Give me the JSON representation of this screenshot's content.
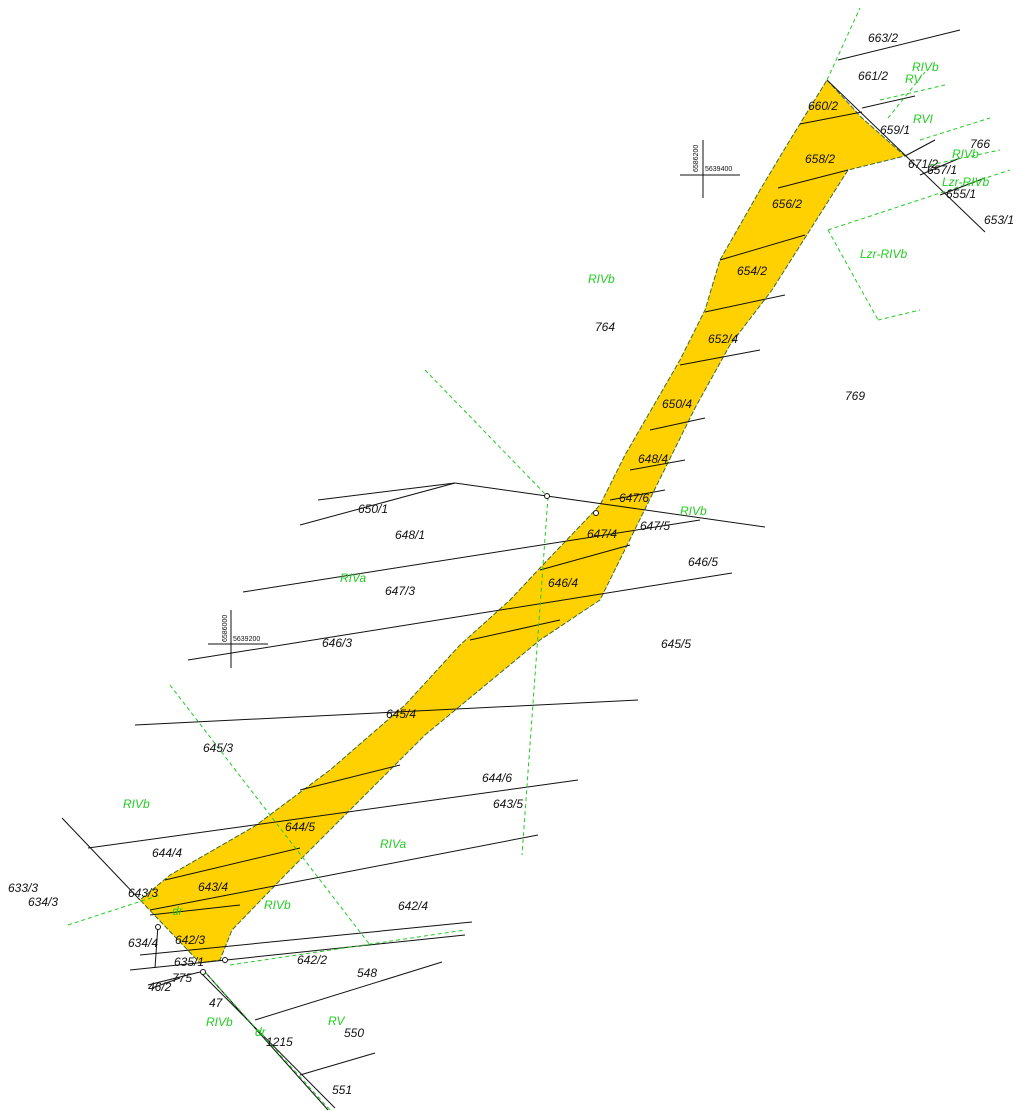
{
  "map": {
    "parcel_labels": [
      "663/2",
      "661/2",
      "660/2",
      "659/1",
      "658/2",
      "766",
      "671/2",
      "657/1",
      "655/1",
      "653/1",
      "656/2",
      "654/2",
      "764",
      "652/4",
      "769",
      "650/4",
      "648/4",
      "647/6",
      "650/1",
      "648/1",
      "647/4",
      "647/5",
      "646/5",
      "647/3",
      "646/4",
      "646/3",
      "645/5",
      "645/4",
      "645/3",
      "644/6",
      "643/5",
      "644/5",
      "644/4",
      "643/3",
      "633/3",
      "634/3",
      "643/4",
      "642/4",
      "642/3",
      "634/4",
      "635/1",
      "642/2",
      "548",
      "775",
      "46/2",
      "47",
      "550",
      "1215",
      "551"
    ],
    "soil_labels": [
      "RIVb",
      "RV",
      "RVI",
      "RIVb",
      "Lzr-RIVb",
      "Lzr-RIVb",
      "RIVb",
      "RIVb",
      "RIVa",
      "RIVb",
      "RIVa",
      "dr",
      "RIVb",
      "RIVb",
      "dr",
      "RV"
    ],
    "coordinates": [
      {
        "northing": "6586200",
        "easting": "5639400"
      },
      {
        "northing": "6586000",
        "easting": "5639200"
      }
    ]
  }
}
